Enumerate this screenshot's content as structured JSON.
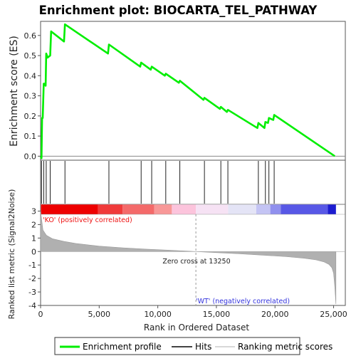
{
  "chart_data": {
    "type": "line",
    "title": "Enrichment plot: BIOCARTA_TEL_PATHWAY",
    "ylabel_top": "Enrichment score (ES)",
    "ylabel_bottom": "Ranked list metric (Signal2Noise)",
    "xlabel": "Rank in Ordered Dataset",
    "x_range": [
      0,
      26000
    ],
    "es_ylim": [
      -0.02,
      0.67
    ],
    "metric_ylim": [
      -4,
      3.5
    ],
    "x_ticks": [
      0,
      5000,
      10000,
      15000,
      20000,
      25000
    ],
    "x_tick_labels": [
      "0",
      "5,000",
      "10,000",
      "15,000",
      "20,000",
      "25,000"
    ],
    "es_ticks": [
      0.0,
      0.1,
      0.2,
      0.3,
      0.4,
      0.5,
      0.6
    ],
    "es_tick_labels": [
      "0.0",
      "0.1",
      "0.2",
      "0.3",
      "0.4",
      "0.5",
      "0.6"
    ],
    "metric_ticks": [
      3,
      2,
      1,
      0,
      -1,
      -2,
      -3,
      -4
    ],
    "metric_tick_labels": [
      "3",
      "2",
      "1",
      "0",
      "-1",
      "-2",
      "-3",
      "-4"
    ],
    "series": [
      {
        "name": "Enrichment profile",
        "color": "#00ee00",
        "x": [
          0,
          80,
          130,
          180,
          270,
          330,
          430,
          480,
          600,
          820,
          900,
          2000,
          2080,
          5750,
          5830,
          8500,
          8580,
          9400,
          9480,
          10600,
          10680,
          11800,
          11880,
          13900,
          13980,
          15300,
          15380,
          15900,
          15980,
          18500,
          18580,
          19100,
          19180,
          19400,
          19480,
          19850,
          19930,
          25100
        ],
        "y": [
          0.0,
          -0.01,
          0.19,
          0.19,
          0.36,
          0.36,
          0.35,
          0.51,
          0.49,
          0.5,
          0.62,
          0.57,
          0.655,
          0.51,
          0.555,
          0.445,
          0.465,
          0.43,
          0.445,
          0.4,
          0.41,
          0.365,
          0.375,
          0.28,
          0.29,
          0.235,
          0.245,
          0.22,
          0.23,
          0.14,
          0.165,
          0.14,
          0.17,
          0.165,
          0.19,
          0.18,
          0.205,
          0.0
        ]
      }
    ],
    "hits": [
      80,
      270,
      480,
      820,
      2080,
      5830,
      8580,
      9480,
      10680,
      11880,
      13980,
      15380,
      15980,
      18580,
      19180,
      19480,
      19930
    ],
    "heat_colors": [
      "#ee0000",
      "#f03a3a",
      "#f46a6a",
      "#f89898",
      "#fcc4dc",
      "#f6e2f4",
      "#e4e4f6",
      "#c4c4f4",
      "#9090ee",
      "#5858e6",
      "#1c1cd0"
    ],
    "heat_breaks": [
      0,
      4900,
      7000,
      9700,
      11200,
      13250,
      16000,
      18400,
      19600,
      20500,
      24500,
      25200
    ],
    "metric_profile": {
      "x": [
        0,
        200,
        500,
        1000,
        2000,
        3000,
        5000,
        7000,
        9000,
        11000,
        13250,
        15000,
        17000,
        19000,
        21000,
        22500,
        23500,
        24200,
        24600,
        24850,
        25000,
        25100,
        25200
      ],
      "y": [
        3.0,
        1.6,
        1.2,
        0.95,
        0.75,
        0.6,
        0.4,
        0.28,
        0.18,
        0.1,
        0.0,
        -0.08,
        -0.17,
        -0.27,
        -0.38,
        -0.5,
        -0.62,
        -0.78,
        -0.95,
        -1.2,
        -1.6,
        -2.6,
        -3.9
      ]
    },
    "zero_cross_rank": 13250,
    "annotations": {
      "zero_cross": "Zero cross at 13250",
      "positive": "'KO' (positively correlated)",
      "negative": "'WT' (negatively correlated)"
    },
    "legend": {
      "placement": "bottom",
      "items": [
        {
          "label": "Enrichment profile",
          "color": "#00ee00"
        },
        {
          "label": "Hits",
          "color": "#444444"
        },
        {
          "label": "Ranking metric scores",
          "color": "#d8d8d8"
        }
      ]
    },
    "colors": {
      "axis": "#555555",
      "metric_fill": "#b0b0b0",
      "positive_text": "#ee1111",
      "negative_text": "#3333dd",
      "zero_line": "#999999"
    }
  }
}
